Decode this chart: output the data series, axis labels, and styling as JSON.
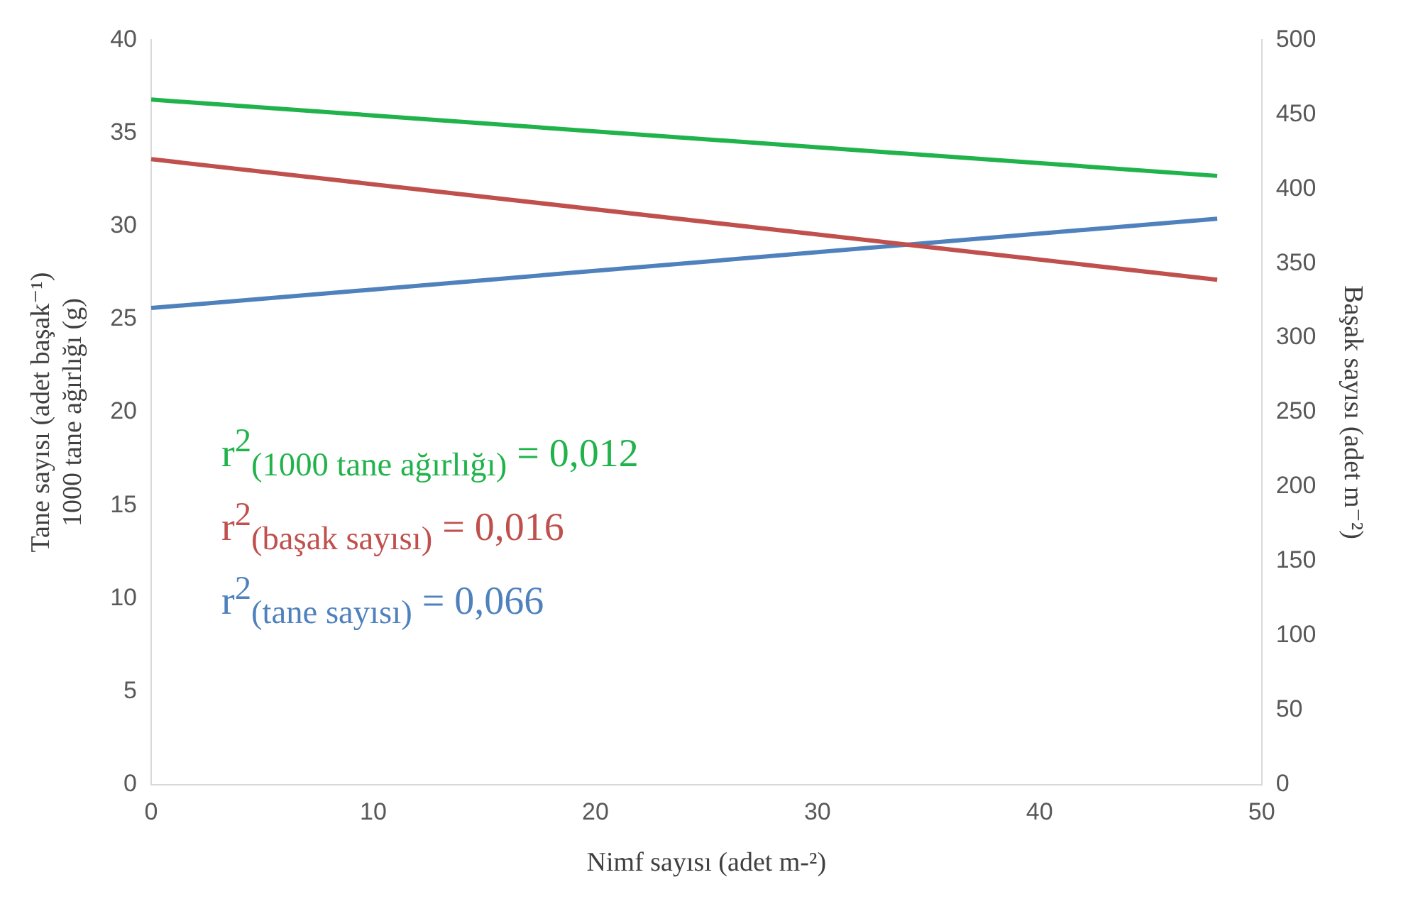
{
  "chart_data": {
    "type": "line",
    "xlabel": "Nimf sayısı (adet m-²)",
    "ylabel": "Tane sayısı (adet başak⁻¹)\n1000 tane ağırlığı (g)",
    "y2label": "Başak sayısı (adet m⁻²)",
    "x": [
      0,
      48
    ],
    "xlim": [
      0,
      50
    ],
    "xticks": [
      0,
      10,
      20,
      30,
      40,
      50
    ],
    "ylim": [
      0,
      40
    ],
    "yticks": [
      0,
      5,
      10,
      15,
      20,
      25,
      30,
      35,
      40
    ],
    "y2lim": [
      0,
      500
    ],
    "y2ticks": [
      0,
      50,
      100,
      150,
      200,
      250,
      300,
      350,
      400,
      450,
      500
    ],
    "grid": false,
    "legend": false,
    "marker": "none",
    "line_style": "solid",
    "series": [
      {
        "color": "#21b34b",
        "values": [
          36.8,
          32.7
        ]
      },
      {
        "color": "#c0504d",
        "values": [
          420,
          339
        ],
        "axis": "y2"
      },
      {
        "color": "#4f81bd",
        "values": [
          25.6,
          30.4
        ]
      }
    ],
    "annotations": [
      "r$^{2}$$_{(1000 tane ağırlığı)}$ = 0,012",
      "r$^{2}$$_{(başak sayısı)}$ = 0,016",
      "r$^{2}$$_{(tane sayısı)}$ = 0,066"
    ]
  }
}
